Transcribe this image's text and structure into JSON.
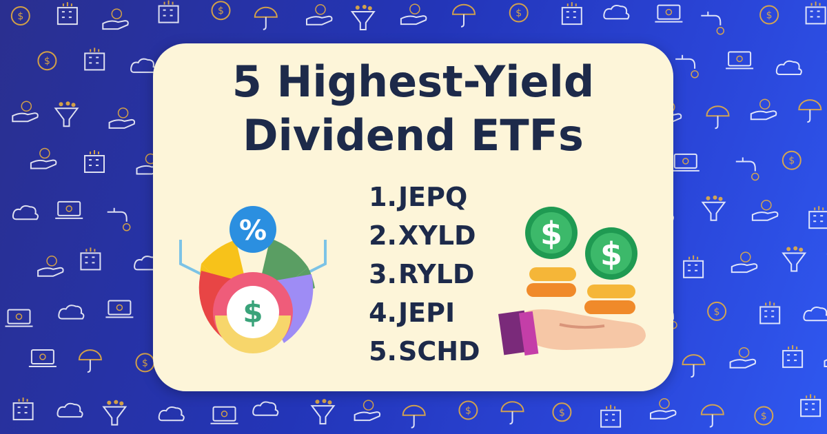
{
  "title": {
    "line1": "5 Highest-Yield",
    "line2": "Dividend ETFs"
  },
  "etf_list": [
    {
      "number": "1.",
      "ticker": "JEPQ"
    },
    {
      "number": "2.",
      "ticker": "XYLD"
    },
    {
      "number": "3.",
      "ticker": "RYLD"
    },
    {
      "number": "4.",
      "ticker": "JEPI"
    },
    {
      "number": "5.",
      "ticker": "SCHD"
    }
  ],
  "colors": {
    "card": "#fdf5d9",
    "title_text": "#1d2a4a",
    "background_from": "#2a2f8f",
    "background_to": "#2f58f0",
    "icon_outline": "#ffffff",
    "icon_accent": "#f0b43a"
  },
  "illustrations": {
    "left": "percent-dollar-pie-icon",
    "right": "hand-receiving-coins-icon"
  },
  "background_pattern": "finance-icon-pattern"
}
